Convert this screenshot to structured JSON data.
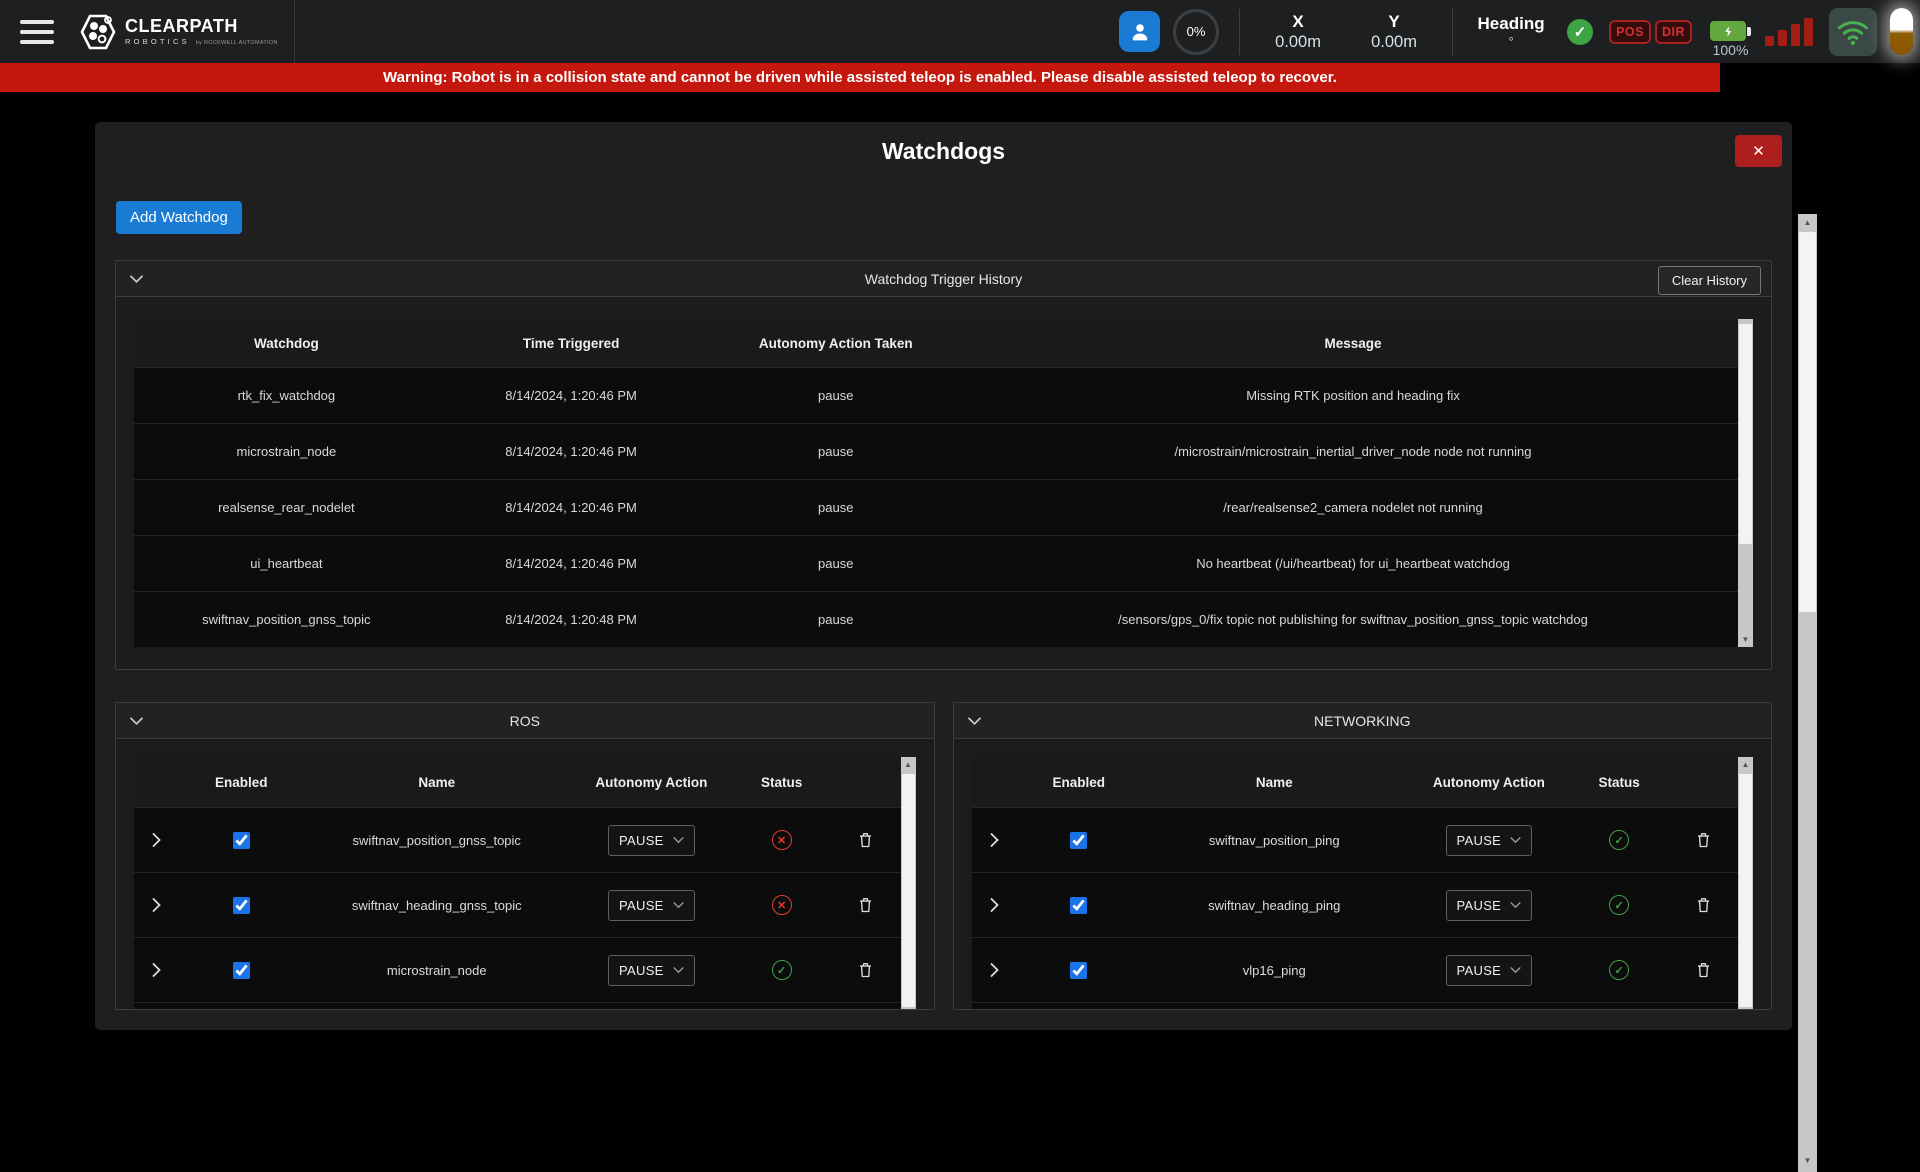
{
  "colors": {
    "accent": "#1a7bd4",
    "banner_red": "#c4170e",
    "ok_green": "#43a047",
    "error_red": "#e53935",
    "badge_red": "#d33030"
  },
  "icons": {
    "close_glyph": "✕",
    "ok_glyph": "✓",
    "error_glyph": "✕",
    "check_glyph": "✓"
  },
  "top_bar": {
    "brand": {
      "name": "CLEARPATH",
      "sub": "ROBOTICS",
      "byline": "by ROCKWELL AUTOMATION"
    },
    "progress": "0%",
    "telemetry": [
      {
        "label": "X",
        "value": "0.00m"
      },
      {
        "label": "Y",
        "value": "0.00m"
      },
      {
        "label": "Heading",
        "value": "°"
      }
    ],
    "badges": [
      {
        "label": "POS"
      },
      {
        "label": "DIR"
      }
    ],
    "battery_label": "100%"
  },
  "banner": {
    "text": "Warning: Robot is in a collision state and cannot be driven while assisted teleop is enabled. Please disable assisted teleop to recover."
  },
  "modal": {
    "title": "Watchdogs",
    "add_button": "Add Watchdog",
    "history": {
      "title": "Watchdog Trigger History",
      "clear_button": "Clear History",
      "columns": [
        "Watchdog",
        "Time Triggered",
        "Autonomy Action Taken",
        "Message"
      ],
      "rows": [
        {
          "watchdog": "rtk_fix_watchdog",
          "time": "8/14/2024, 1:20:46 PM",
          "action": "pause",
          "message": "Missing RTK position and heading fix"
        },
        {
          "watchdog": "microstrain_node",
          "time": "8/14/2024, 1:20:46 PM",
          "action": "pause",
          "message": "/microstrain/microstrain_inertial_driver_node node not running"
        },
        {
          "watchdog": "realsense_rear_nodelet",
          "time": "8/14/2024, 1:20:46 PM",
          "action": "pause",
          "message": "/rear/realsense2_camera nodelet not running"
        },
        {
          "watchdog": "ui_heartbeat",
          "time": "8/14/2024, 1:20:46 PM",
          "action": "pause",
          "message": "No heartbeat (/ui/heartbeat) for ui_heartbeat watchdog"
        },
        {
          "watchdog": "swiftnav_position_gnss_topic",
          "time": "8/14/2024, 1:20:48 PM",
          "action": "pause",
          "message": "/sensors/gps_0/fix topic not publishing for swiftnav_position_gnss_topic watchdog"
        }
      ]
    },
    "sections": [
      {
        "title": "ROS",
        "columns": [
          "Enabled",
          "Name",
          "Autonomy Action",
          "Status"
        ],
        "rows": [
          {
            "enabled": true,
            "name": "swiftnav_position_gnss_topic",
            "action": "PAUSE",
            "status": "error"
          },
          {
            "enabled": true,
            "name": "swiftnav_heading_gnss_topic",
            "action": "PAUSE",
            "status": "error"
          },
          {
            "enabled": true,
            "name": "microstrain_node",
            "action": "PAUSE",
            "status": "ok"
          }
        ]
      },
      {
        "title": "NETWORKING",
        "columns": [
          "Enabled",
          "Name",
          "Autonomy Action",
          "Status"
        ],
        "rows": [
          {
            "enabled": true,
            "name": "swiftnav_position_ping",
            "action": "PAUSE",
            "status": "ok"
          },
          {
            "enabled": true,
            "name": "swiftnav_heading_ping",
            "action": "PAUSE",
            "status": "ok"
          },
          {
            "enabled": true,
            "name": "vlp16_ping",
            "action": "PAUSE",
            "status": "ok"
          }
        ]
      }
    ]
  }
}
